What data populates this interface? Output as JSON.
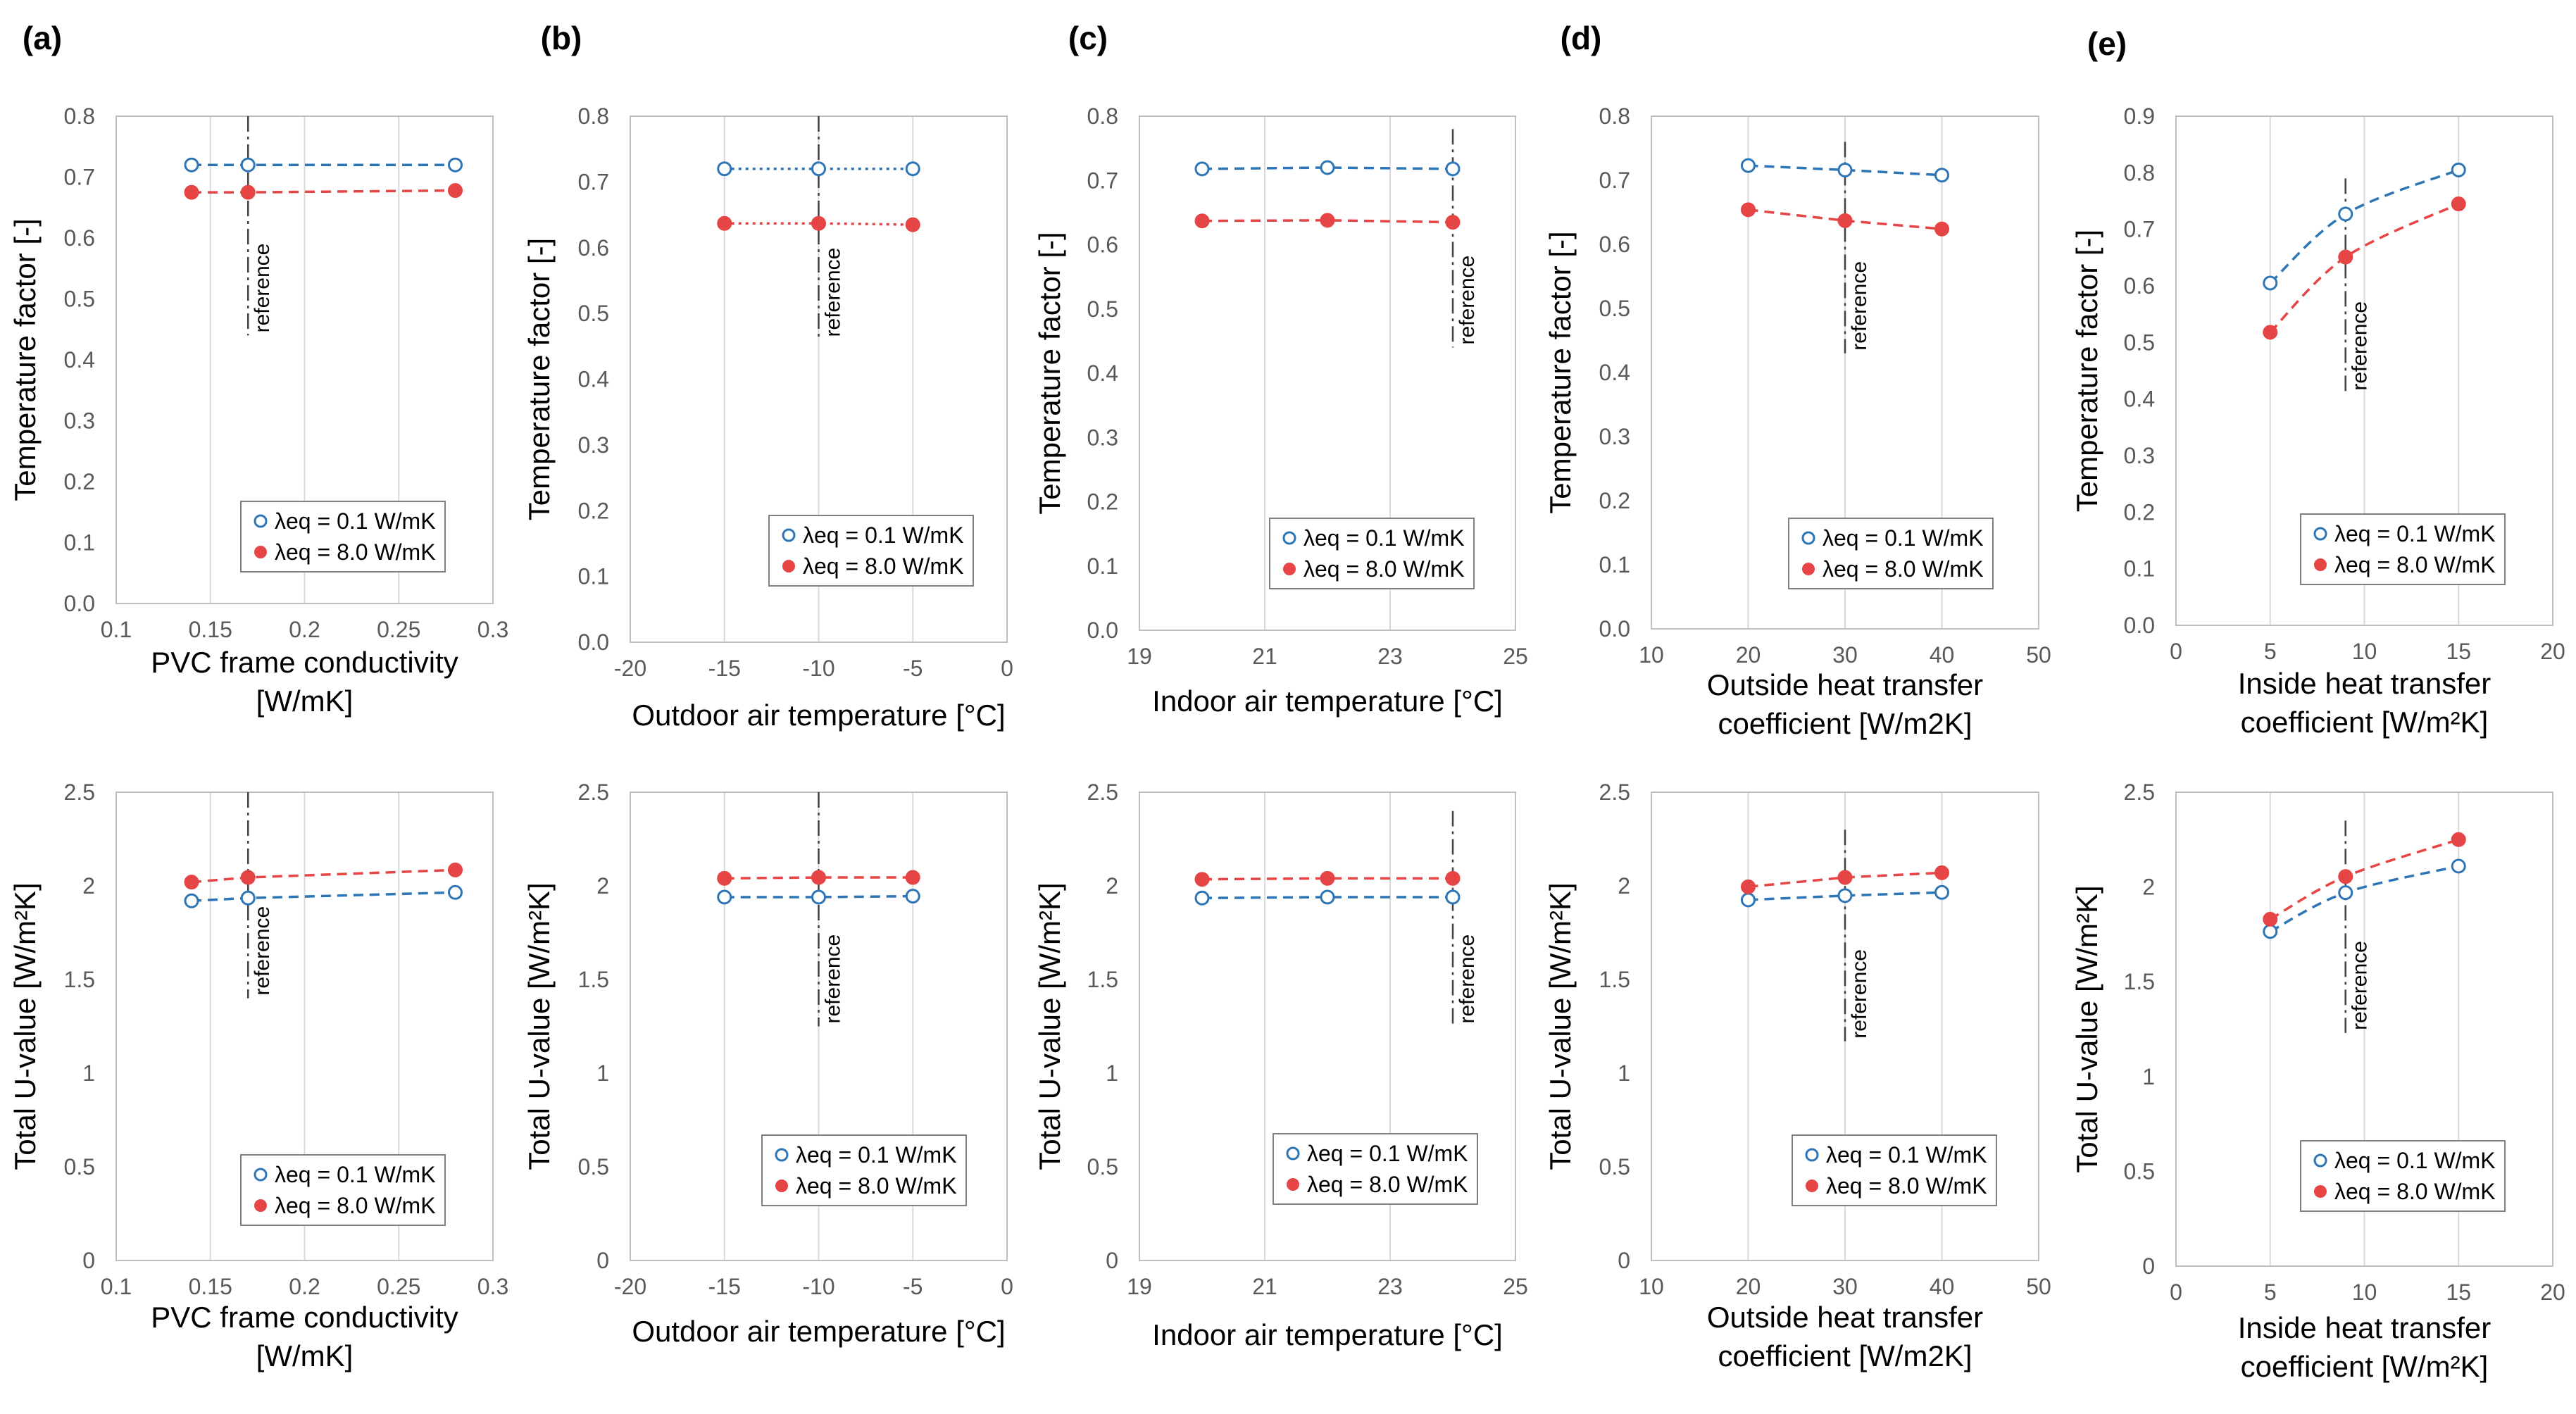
{
  "colors": {
    "blue": "#2e75b6",
    "red": "#e64545",
    "grid": "#d9d9d9",
    "frame": "#bfbfbf",
    "tick": "#595959"
  },
  "legend": {
    "low": "λeq = 0.1 W/mK",
    "high": "λeq = 8.0 W/mK"
  },
  "reference_label": "reference",
  "chart_data": [
    {
      "id": "a-top",
      "panel": "(a)",
      "type": "line",
      "xlabel": [
        "PVC frame conductivity",
        "[W/mK]"
      ],
      "ylabel": "Temperature factor [-]",
      "xlim": [
        0.1,
        0.3
      ],
      "xticks": [
        0.1,
        0.15,
        0.2,
        0.25,
        0.3
      ],
      "xtick_labels": [
        "0.1",
        "0.15",
        "0.2",
        "0.25",
        "0.3"
      ],
      "ylim": [
        0,
        0.8
      ],
      "yticks": [
        0,
        0.1,
        0.2,
        0.3,
        0.4,
        0.5,
        0.6,
        0.7,
        0.8
      ],
      "ytick_labels": [
        "0.0",
        "0.1",
        "0.2",
        "0.3",
        "0.4",
        "0.5",
        "0.6",
        "0.7",
        "0.8"
      ],
      "reference": {
        "x": 0.17,
        "y": [
          0.44,
          0.8
        ]
      },
      "x": [
        0.14,
        0.17,
        0.28
      ],
      "series": [
        {
          "name": "λeq = 0.1 W/mK",
          "values": [
            0.72,
            0.72,
            0.72
          ]
        },
        {
          "name": "λeq = 8.0 W/mK",
          "values": [
            0.675,
            0.675,
            0.678
          ]
        }
      ]
    },
    {
      "id": "b-top",
      "panel": "(b)",
      "type": "line",
      "xlabel": [
        "Outdoor air temperature [°C]"
      ],
      "ylabel": "Temperature factor [-]",
      "xlim": [
        -20,
        0
      ],
      "xticks": [
        -20,
        -15,
        -10,
        -5,
        0
      ],
      "xtick_labels": [
        "-20",
        "-15",
        "-10",
        "-5",
        "0"
      ],
      "ylim": [
        0,
        0.8
      ],
      "yticks": [
        0,
        0.1,
        0.2,
        0.3,
        0.4,
        0.5,
        0.6,
        0.7,
        0.8
      ],
      "ytick_labels": [
        "0.0",
        "0.1",
        "0.2",
        "0.3",
        "0.4",
        "0.5",
        "0.6",
        "0.7",
        "0.8"
      ],
      "reference": {
        "x": -10,
        "y": [
          0.46,
          0.8
        ]
      },
      "x": [
        -15,
        -10,
        -5
      ],
      "series": [
        {
          "name": "λeq = 0.1 W/mK",
          "values": [
            0.72,
            0.72,
            0.72
          ]
        },
        {
          "name": "λeq = 8.0 W/mK",
          "values": [
            0.637,
            0.637,
            0.635
          ]
        }
      ]
    },
    {
      "id": "c-top",
      "panel": "(c)",
      "type": "line",
      "xlabel": [
        "Indoor air temperature [°C]"
      ],
      "ylabel": "Temperature factor [-]",
      "xlim": [
        19,
        25
      ],
      "xticks": [
        19,
        21,
        23,
        25
      ],
      "xtick_labels": [
        "19",
        "21",
        "23",
        "25"
      ],
      "ylim": [
        0,
        0.8
      ],
      "yticks": [
        0,
        0.1,
        0.2,
        0.3,
        0.4,
        0.5,
        0.6,
        0.7,
        0.8
      ],
      "ytick_labels": [
        "0.0",
        "0.1",
        "0.2",
        "0.3",
        "0.4",
        "0.5",
        "0.6",
        "0.7",
        "0.8"
      ],
      "reference": {
        "x": 24,
        "y": [
          0.44,
          0.78
        ]
      },
      "x": [
        20,
        22,
        24
      ],
      "series": [
        {
          "name": "λeq = 0.1 W/mK",
          "values": [
            0.718,
            0.72,
            0.718
          ]
        },
        {
          "name": "λeq = 8.0 W/mK",
          "values": [
            0.637,
            0.638,
            0.635
          ]
        }
      ]
    },
    {
      "id": "d-top",
      "panel": "(d)",
      "type": "line",
      "xlabel": [
        "Outside heat transfer",
        "coefficient [W/m2K]"
      ],
      "ylabel": "Temperature factor [-]",
      "xlim": [
        10,
        50
      ],
      "xticks": [
        10,
        20,
        30,
        40,
        50
      ],
      "xtick_labels": [
        "10",
        "20",
        "30",
        "40",
        "50"
      ],
      "ylim": [
        0,
        0.8
      ],
      "yticks": [
        0,
        0.1,
        0.2,
        0.3,
        0.4,
        0.5,
        0.6,
        0.7,
        0.8
      ],
      "ytick_labels": [
        "0.0",
        "0.1",
        "0.2",
        "0.3",
        "0.4",
        "0.5",
        "0.6",
        "0.7",
        "0.8"
      ],
      "reference": {
        "x": 30,
        "y": [
          0.43,
          0.76
        ]
      },
      "x": [
        20,
        30,
        40
      ],
      "series": [
        {
          "name": "λeq = 0.1 W/mK",
          "values": [
            0.723,
            0.716,
            0.708
          ]
        },
        {
          "name": "λeq = 8.0 W/mK",
          "values": [
            0.654,
            0.637,
            0.624
          ]
        }
      ]
    },
    {
      "id": "e-top",
      "panel": "(e)",
      "type": "line",
      "xlabel": [
        "Inside heat transfer",
        "coefficient [W/m²K]"
      ],
      "ylabel": "Temperature factor [-]",
      "xlim": [
        0,
        20
      ],
      "xticks": [
        0,
        5,
        10,
        15,
        20
      ],
      "xtick_labels": [
        "0",
        "5",
        "10",
        "15",
        "20"
      ],
      "ylim": [
        0,
        0.9
      ],
      "yticks": [
        0,
        0.1,
        0.2,
        0.3,
        0.4,
        0.5,
        0.6,
        0.7,
        0.8,
        0.9
      ],
      "ytick_labels": [
        "0.0",
        "0.1",
        "0.2",
        "0.3",
        "0.4",
        "0.5",
        "0.6",
        "0.7",
        "0.8",
        "0.9"
      ],
      "reference": {
        "x": 9,
        "y": [
          0.41,
          0.79
        ]
      },
      "x": [
        5,
        9,
        15
      ],
      "curved": true,
      "series": [
        {
          "name": "λeq = 0.1 W/mK",
          "values": [
            0.605,
            0.727,
            0.805
          ]
        },
        {
          "name": "λeq = 8.0 W/mK",
          "values": [
            0.518,
            0.651,
            0.745
          ]
        }
      ]
    },
    {
      "id": "a-bot",
      "panel": "",
      "type": "line",
      "xlabel": [
        "PVC frame conductivity",
        "[W/mK]"
      ],
      "ylabel": "Total U-value [W/m²K]",
      "xlim": [
        0.1,
        0.3
      ],
      "xticks": [
        0.1,
        0.15,
        0.2,
        0.25,
        0.3
      ],
      "xtick_labels": [
        "0.1",
        "0.15",
        "0.2",
        "0.25",
        "0.3"
      ],
      "ylim": [
        0,
        2.5
      ],
      "yticks": [
        0,
        0.5,
        1,
        1.5,
        2,
        2.5
      ],
      "ytick_labels": [
        "0",
        "0.5",
        "1",
        "1.5",
        "2",
        "2.5"
      ],
      "reference": {
        "x": 0.17,
        "y": [
          1.4,
          2.5
        ]
      },
      "x": [
        0.14,
        0.17,
        0.28
      ],
      "series": [
        {
          "name": "λeq = 0.1 W/mK",
          "values": [
            1.92,
            1.935,
            1.965
          ]
        },
        {
          "name": "λeq = 8.0 W/mK",
          "values": [
            2.02,
            2.045,
            2.085
          ]
        }
      ]
    },
    {
      "id": "b-bot",
      "panel": "",
      "type": "line",
      "xlabel": [
        "Outdoor air temperature [°C]"
      ],
      "ylabel": "Total U-value [W/m²K]",
      "xlim": [
        -20,
        0
      ],
      "xticks": [
        -20,
        -15,
        -10,
        -5,
        0
      ],
      "xtick_labels": [
        "-20",
        "-15",
        "-10",
        "-5",
        "0"
      ],
      "ylim": [
        0,
        2.5
      ],
      "yticks": [
        0,
        0.5,
        1,
        1.5,
        2,
        2.5
      ],
      "ytick_labels": [
        "0",
        "0.5",
        "1",
        "1.5",
        "2",
        "2.5"
      ],
      "reference": {
        "x": -10,
        "y": [
          1.25,
          2.5
        ]
      },
      "x": [
        -15,
        -10,
        -5
      ],
      "series": [
        {
          "name": "λeq = 0.1 W/mK",
          "values": [
            1.94,
            1.94,
            1.945
          ]
        },
        {
          "name": "λeq = 8.0 W/mK",
          "values": [
            2.04,
            2.045,
            2.045
          ]
        }
      ]
    },
    {
      "id": "c-bot",
      "panel": "",
      "type": "line",
      "xlabel": [
        "Indoor air temperature [°C]"
      ],
      "ylabel": "Total U-value [W/m²K]",
      "xlim": [
        19,
        25
      ],
      "xticks": [
        19,
        21,
        23,
        25
      ],
      "xtick_labels": [
        "19",
        "21",
        "23",
        "25"
      ],
      "ylim": [
        0,
        2.5
      ],
      "yticks": [
        0,
        0.5,
        1,
        1.5,
        2,
        2.5
      ],
      "ytick_labels": [
        "0",
        "0.5",
        "1",
        "1.5",
        "2",
        "2.5"
      ],
      "reference": {
        "x": 24,
        "y": [
          1.25,
          2.4
        ]
      },
      "x": [
        20,
        22,
        24
      ],
      "series": [
        {
          "name": "λeq = 0.1 W/mK",
          "values": [
            1.935,
            1.94,
            1.94
          ]
        },
        {
          "name": "λeq = 8.0 W/mK",
          "values": [
            2.035,
            2.04,
            2.04
          ]
        }
      ]
    },
    {
      "id": "d-bot",
      "panel": "",
      "type": "line",
      "xlabel": [
        "Outside heat transfer",
        "coefficient [W/m2K]"
      ],
      "ylabel": "Total U-value [W/m²K]",
      "xlim": [
        10,
        50
      ],
      "xticks": [
        10,
        20,
        30,
        40,
        50
      ],
      "xtick_labels": [
        "10",
        "20",
        "30",
        "40",
        "50"
      ],
      "ylim": [
        0,
        2.5
      ],
      "yticks": [
        0,
        0.5,
        1,
        1.5,
        2,
        2.5
      ],
      "ytick_labels": [
        "0",
        "0.5",
        "1",
        "1.5",
        "2",
        "2.5"
      ],
      "reference": {
        "x": 30,
        "y": [
          1.17,
          2.3
        ]
      },
      "x": [
        20,
        30,
        40
      ],
      "series": [
        {
          "name": "λeq = 0.1 W/mK",
          "values": [
            1.925,
            1.948,
            1.965
          ]
        },
        {
          "name": "λeq = 8.0 W/mK",
          "values": [
            1.995,
            2.045,
            2.07
          ]
        }
      ]
    },
    {
      "id": "e-bot",
      "panel": "",
      "type": "line",
      "xlabel": [
        "Inside heat transfer",
        "coefficient [W/m²K]"
      ],
      "ylabel": "Total U-value [W/m²K]",
      "xlim": [
        0,
        20
      ],
      "xticks": [
        0,
        5,
        10,
        15,
        20
      ],
      "xtick_labels": [
        "0",
        "5",
        "10",
        "15",
        "20"
      ],
      "ylim": [
        0,
        2.5
      ],
      "yticks": [
        0,
        0.5,
        1,
        1.5,
        2,
        2.5
      ],
      "ytick_labels": [
        "0",
        "0.5",
        "1",
        "1.5",
        "2",
        "2.5"
      ],
      "reference": {
        "x": 9,
        "y": [
          1.23,
          2.35
        ]
      },
      "x": [
        5,
        9,
        15
      ],
      "curved": true,
      "series": [
        {
          "name": "λeq = 0.1 W/mK",
          "values": [
            1.765,
            1.97,
            2.11
          ]
        },
        {
          "name": "λeq = 8.0 W/mK",
          "values": [
            1.83,
            2.055,
            2.25
          ]
        }
      ]
    }
  ]
}
